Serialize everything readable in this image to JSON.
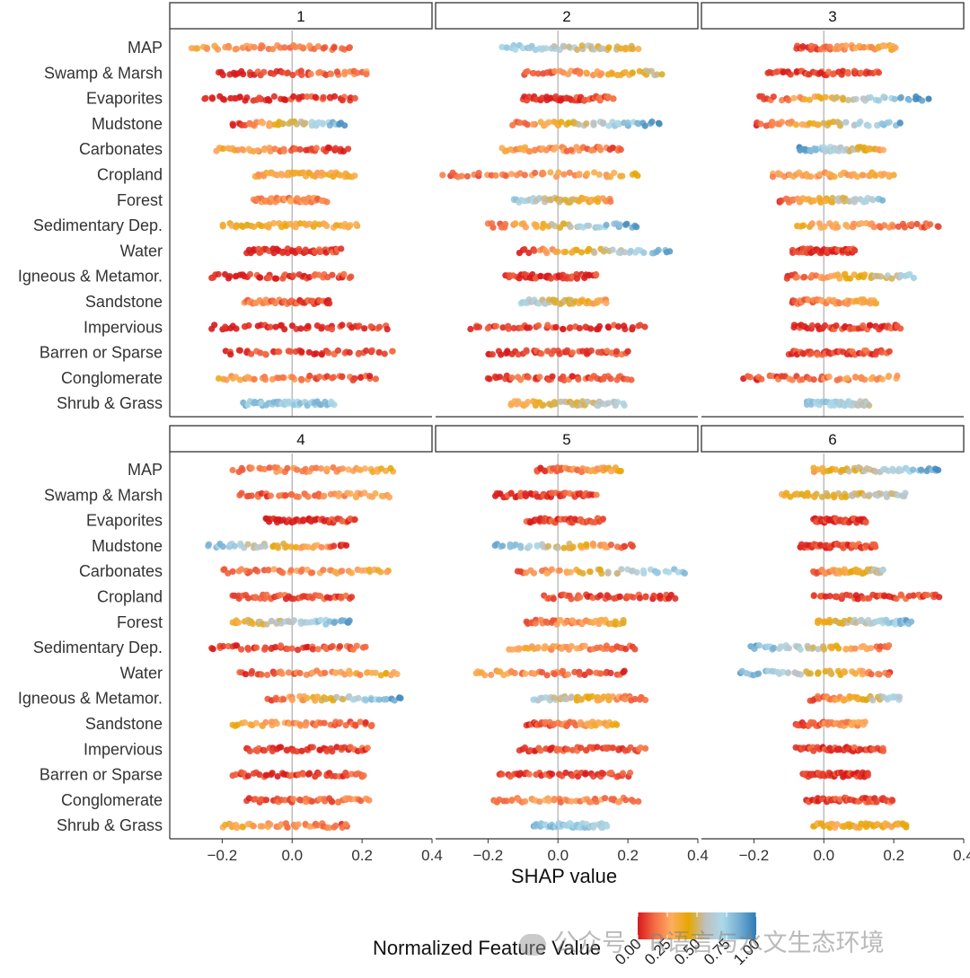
{
  "chart_data": {
    "type": "scatter",
    "subtype": "shap-beeswarm-faceted",
    "xlabel": "SHAP value",
    "xlim": [
      -0.35,
      0.4
    ],
    "xticks": [
      -0.2,
      0.0,
      0.2,
      0.4
    ],
    "xtick_labels": [
      "-0.2",
      "0.0",
      "0.2",
      "0.4"
    ],
    "features": [
      "MAP",
      "Swamp & Marsh",
      "Evaporites",
      "Mudstone",
      "Carbonates",
      "Cropland",
      "Forest",
      "Sedimentary Dep.",
      "Water",
      "Igneous & Metamor.",
      "Sandstone",
      "Impervious",
      "Barren or Sparse",
      "Conglomerate",
      "Shrub & Grass"
    ],
    "legend": {
      "title": "Normalized Feature Value",
      "ticks": [
        0.0,
        0.25,
        0.5,
        0.75,
        1.0
      ],
      "tick_labels": [
        "0.00",
        "0.25",
        "0.50",
        "0.75",
        "1.00"
      ],
      "colors": [
        "#d7191c",
        "#f46d43",
        "#fdae61",
        "#e6a700",
        "#bfbfbf",
        "#abd9e9",
        "#74add1",
        "#2c7bb6"
      ]
    },
    "panels": [
      {
        "label": "1",
        "ranges": [
          [
            -0.29,
            0.17
          ],
          [
            -0.21,
            0.22
          ],
          [
            -0.25,
            0.18
          ],
          [
            -0.17,
            0.15
          ],
          [
            -0.22,
            0.16
          ],
          [
            -0.11,
            0.18
          ],
          [
            -0.11,
            0.1
          ],
          [
            -0.2,
            0.19
          ],
          [
            -0.13,
            0.14
          ],
          [
            -0.23,
            0.17
          ],
          [
            -0.14,
            0.11
          ],
          [
            -0.23,
            0.28
          ],
          [
            -0.19,
            0.29
          ],
          [
            -0.21,
            0.24
          ],
          [
            -0.14,
            0.12
          ]
        ],
        "colors": [
          [
            0.3,
            0.1
          ],
          [
            0.0,
            0.2
          ],
          [
            0.0,
            0.1
          ],
          [
            0.0,
            0.9
          ],
          [
            0.35,
            0.0
          ],
          [
            0.3,
            0.35
          ],
          [
            0.2,
            0.2
          ],
          [
            0.4,
            0.3
          ],
          [
            0.0,
            0.1
          ],
          [
            0.0,
            0.1
          ],
          [
            0.2,
            0.05
          ],
          [
            0.0,
            0.05
          ],
          [
            0.05,
            0.1
          ],
          [
            0.3,
            0.05
          ],
          [
            0.8,
            0.75
          ]
        ]
      },
      {
        "label": "2",
        "ranges": [
          [
            -0.16,
            0.23
          ],
          [
            -0.1,
            0.3
          ],
          [
            -0.1,
            0.16
          ],
          [
            -0.13,
            0.29
          ],
          [
            -0.16,
            0.18
          ],
          [
            -0.33,
            0.23
          ],
          [
            -0.13,
            0.15
          ],
          [
            -0.2,
            0.23
          ],
          [
            -0.11,
            0.32
          ],
          [
            -0.15,
            0.11
          ],
          [
            -0.11,
            0.14
          ],
          [
            -0.25,
            0.25
          ],
          [
            -0.2,
            0.2
          ],
          [
            -0.2,
            0.21
          ],
          [
            -0.14,
            0.19
          ]
        ],
        "colors": [
          [
            0.8,
            0.4
          ],
          [
            0.05,
            0.5
          ],
          [
            0.0,
            0.1
          ],
          [
            0.1,
            0.95
          ],
          [
            0.3,
            0.1
          ],
          [
            0.1,
            0.35
          ],
          [
            0.75,
            0.25
          ],
          [
            0.1,
            0.95
          ],
          [
            0.05,
            0.9
          ],
          [
            0.05,
            0.05
          ],
          [
            0.7,
            0.25
          ],
          [
            0.05,
            0.05
          ],
          [
            0.05,
            0.1
          ],
          [
            0.1,
            0.1
          ],
          [
            0.3,
            0.7
          ]
        ]
      },
      {
        "label": "3",
        "ranges": [
          [
            -0.08,
            0.21
          ],
          [
            -0.16,
            0.16
          ],
          [
            -0.19,
            0.3
          ],
          [
            -0.2,
            0.22
          ],
          [
            -0.07,
            0.17
          ],
          [
            -0.15,
            0.2
          ],
          [
            -0.13,
            0.17
          ],
          [
            -0.08,
            0.33
          ],
          [
            -0.09,
            0.09
          ],
          [
            -0.11,
            0.26
          ],
          [
            -0.09,
            0.15
          ],
          [
            -0.09,
            0.22
          ],
          [
            -0.1,
            0.19
          ],
          [
            -0.23,
            0.21
          ],
          [
            -0.05,
            0.13
          ]
        ],
        "colors": [
          [
            0.05,
            0.35
          ],
          [
            0.05,
            0.1
          ],
          [
            0.0,
            1.0
          ],
          [
            0.05,
            0.9
          ],
          [
            0.9,
            0.3
          ],
          [
            0.2,
            0.35
          ],
          [
            0.1,
            0.8
          ],
          [
            0.35,
            0.1
          ],
          [
            0.05,
            0.05
          ],
          [
            0.05,
            0.7
          ],
          [
            0.1,
            0.35
          ],
          [
            0.05,
            0.05
          ],
          [
            0.05,
            0.1
          ],
          [
            0.05,
            0.3
          ],
          [
            0.8,
            0.6
          ]
        ]
      },
      {
        "label": "4",
        "ranges": [
          [
            -0.17,
            0.29
          ],
          [
            -0.15,
            0.28
          ],
          [
            -0.08,
            0.18
          ],
          [
            -0.24,
            0.16
          ],
          [
            -0.2,
            0.28
          ],
          [
            -0.17,
            0.17
          ],
          [
            -0.17,
            0.17
          ],
          [
            -0.23,
            0.21
          ],
          [
            -0.15,
            0.3
          ],
          [
            -0.07,
            0.31
          ],
          [
            -0.17,
            0.23
          ],
          [
            -0.13,
            0.22
          ],
          [
            -0.17,
            0.21
          ],
          [
            -0.13,
            0.22
          ],
          [
            -0.2,
            0.16
          ]
        ],
        "colors": [
          [
            0.1,
            0.35
          ],
          [
            0.05,
            0.3
          ],
          [
            0.0,
            0.1
          ],
          [
            0.85,
            0.05
          ],
          [
            0.1,
            0.35
          ],
          [
            0.1,
            0.1
          ],
          [
            0.35,
            0.9
          ],
          [
            0.05,
            0.1
          ],
          [
            0.05,
            0.35
          ],
          [
            0.05,
            0.95
          ],
          [
            0.35,
            0.05
          ],
          [
            0.05,
            0.1
          ],
          [
            0.05,
            0.1
          ],
          [
            0.05,
            0.2
          ],
          [
            0.35,
            0.1
          ]
        ]
      },
      {
        "label": "5",
        "ranges": [
          [
            -0.06,
            0.18
          ],
          [
            -0.18,
            0.11
          ],
          [
            -0.09,
            0.13
          ],
          [
            -0.18,
            0.22
          ],
          [
            -0.12,
            0.37
          ],
          [
            -0.04,
            0.34
          ],
          [
            -0.09,
            0.19
          ],
          [
            -0.14,
            0.22
          ],
          [
            -0.24,
            0.19
          ],
          [
            -0.07,
            0.25
          ],
          [
            -0.09,
            0.17
          ],
          [
            -0.11,
            0.25
          ],
          [
            -0.17,
            0.21
          ],
          [
            -0.19,
            0.23
          ],
          [
            -0.07,
            0.14
          ]
        ],
        "colors": [
          [
            0.1,
            0.35
          ],
          [
            0.05,
            0.1
          ],
          [
            0.05,
            0.1
          ],
          [
            0.9,
            0.05
          ],
          [
            0.1,
            0.85
          ],
          [
            0.1,
            0.05
          ],
          [
            0.1,
            0.4
          ],
          [
            0.35,
            0.1
          ],
          [
            0.3,
            0.05
          ],
          [
            0.7,
            0.1
          ],
          [
            0.05,
            0.35
          ],
          [
            0.05,
            0.1
          ],
          [
            0.05,
            0.1
          ],
          [
            0.2,
            0.2
          ],
          [
            0.8,
            0.7
          ]
        ]
      },
      {
        "label": "6",
        "ranges": [
          [
            -0.03,
            0.33
          ],
          [
            -0.12,
            0.24
          ],
          [
            -0.03,
            0.12
          ],
          [
            -0.07,
            0.15
          ],
          [
            -0.03,
            0.17
          ],
          [
            -0.03,
            0.33
          ],
          [
            -0.02,
            0.25
          ],
          [
            -0.21,
            0.19
          ],
          [
            -0.24,
            0.19
          ],
          [
            -0.04,
            0.22
          ],
          [
            -0.08,
            0.12
          ],
          [
            -0.08,
            0.17
          ],
          [
            -0.06,
            0.13
          ],
          [
            -0.05,
            0.2
          ],
          [
            -0.03,
            0.24
          ]
        ],
        "colors": [
          [
            0.3,
            0.9
          ],
          [
            0.35,
            0.6
          ],
          [
            0.05,
            0.05
          ],
          [
            0.05,
            0.1
          ],
          [
            0.1,
            0.6
          ],
          [
            0.05,
            0.1
          ],
          [
            0.35,
            0.85
          ],
          [
            0.9,
            0.1
          ],
          [
            0.9,
            0.1
          ],
          [
            0.05,
            0.7
          ],
          [
            0.05,
            0.3
          ],
          [
            0.05,
            0.05
          ],
          [
            0.05,
            0.05
          ],
          [
            0.05,
            0.1
          ],
          [
            0.35,
            0.35
          ]
        ]
      }
    ]
  },
  "watermark": "公众号 · R语言与水文生态环境"
}
